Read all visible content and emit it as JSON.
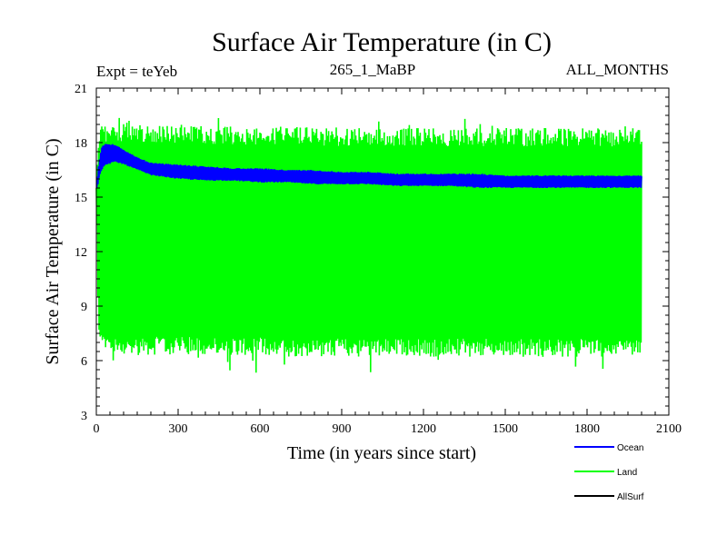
{
  "chart_data": {
    "type": "line",
    "title": "Surface Air Temperature (in C)",
    "subtitle_left": "Expt = teYeb",
    "subtitle_center": "265_1_MaBP",
    "subtitle_right": "ALL_MONTHS",
    "xlabel": "Time (in years since start)",
    "ylabel": "Surface Air Temperature (in C)",
    "xlim": [
      0,
      2100
    ],
    "ylim": [
      3,
      21
    ],
    "xticks": [
      0,
      300,
      600,
      900,
      1200,
      1500,
      1800,
      2100
    ],
    "yticks": [
      3,
      6,
      9,
      12,
      15,
      18,
      21
    ],
    "xtick_labels": [
      "0",
      "300",
      "600",
      "900",
      "1200",
      "1500",
      "1800",
      "2100"
    ],
    "ytick_labels": [
      "3",
      "6",
      "9",
      "12",
      "15",
      "18",
      "21"
    ],
    "legend_position": "bottom-right",
    "series": [
      {
        "name": "Land",
        "color": "#00ff00",
        "x": [
          0,
          5,
          10,
          20,
          50,
          100,
          150,
          200,
          300,
          400,
          500,
          600,
          700,
          800,
          900,
          1000,
          1100,
          1200,
          1300,
          1400,
          1500,
          1600,
          1700,
          1800,
          1900,
          2000
        ],
        "upper": [
          15.5,
          17.5,
          18.8,
          19.0,
          19.1,
          19.1,
          19.1,
          19.0,
          19.0,
          18.9,
          18.9,
          18.9,
          18.9,
          18.8,
          18.8,
          18.8,
          18.8,
          18.8,
          18.8,
          18.8,
          18.8,
          18.8,
          18.8,
          18.8,
          18.8,
          18.8
        ],
        "lower": [
          15.5,
          10.0,
          7.0,
          6.4,
          6.3,
          6.3,
          6.3,
          6.3,
          6.3,
          6.3,
          6.3,
          6.3,
          6.2,
          6.2,
          6.2,
          6.2,
          6.2,
          6.2,
          6.2,
          6.2,
          6.2,
          6.2,
          6.2,
          6.2,
          6.2,
          6.2
        ],
        "spike_max": 19.5,
        "spike_min": 5.3
      },
      {
        "name": "Ocean",
        "color": "#0000ff",
        "x": [
          0,
          5,
          10,
          20,
          40,
          70,
          100,
          150,
          200,
          300,
          400,
          500,
          600,
          700,
          800,
          900,
          1000,
          1100,
          1200,
          1300,
          1400,
          1500,
          1600,
          1700,
          1800,
          1900,
          2000
        ],
        "upper": [
          15.5,
          16.3,
          17.0,
          17.8,
          18.0,
          17.9,
          17.6,
          17.2,
          16.9,
          16.8,
          16.7,
          16.6,
          16.6,
          16.5,
          16.5,
          16.4,
          16.4,
          16.3,
          16.3,
          16.3,
          16.3,
          16.2,
          16.2,
          16.2,
          16.2,
          16.2,
          16.2
        ],
        "lower": [
          15.5,
          15.6,
          16.0,
          16.5,
          16.8,
          16.9,
          16.8,
          16.5,
          16.2,
          16.0,
          15.9,
          15.9,
          15.8,
          15.8,
          15.7,
          15.7,
          15.7,
          15.6,
          15.6,
          15.6,
          15.5,
          15.5,
          15.5,
          15.5,
          15.5,
          15.5,
          15.5
        ]
      },
      {
        "name": "AllSurf",
        "color": "#000000",
        "x": [],
        "upper": [],
        "lower": []
      }
    ]
  }
}
